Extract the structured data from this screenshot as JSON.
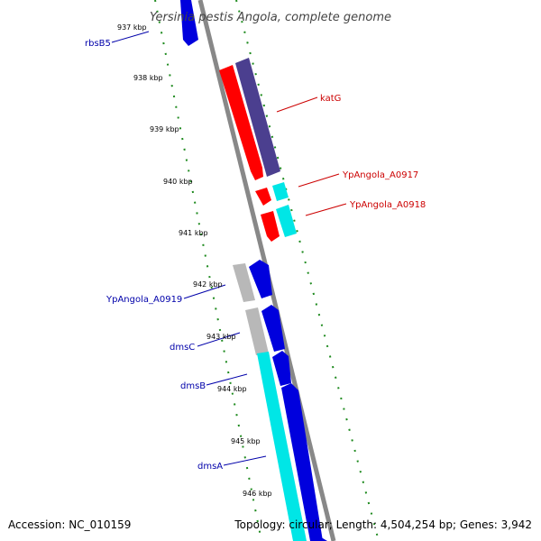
{
  "title": "Yersinia pestis Angola, complete genome",
  "footer": {
    "accession": "Accession: NC_010159",
    "topology": "Topology: circular; Length: 4,504,254 bp; Genes: 3,942"
  },
  "colors": {
    "backbone": "#808080",
    "dots": "#1e8a1e",
    "forward_label": "#cc0000",
    "reverse_label": "#0000aa",
    "red_gene": "#ff0000",
    "purple_gene": "#4b3f8f",
    "cyan_gene": "#00e6e6",
    "blue_gene": "#0000dd",
    "grey_gene": "#b8b8b8"
  },
  "ticks": [
    "937 kbp",
    "938 kbp",
    "939 kbp",
    "940 kbp",
    "941 kbp",
    "942 kbp",
    "943 kbp",
    "944 kbp",
    "945 kbp",
    "946 kbp"
  ],
  "gene_labels": {
    "forward": [
      "katG",
      "YpAngola_A0917",
      "YpAngola_A0918"
    ],
    "reverse": [
      "rbsB5",
      "YpAngola_A0919",
      "dmsC",
      "dmsB",
      "dmsA"
    ]
  }
}
